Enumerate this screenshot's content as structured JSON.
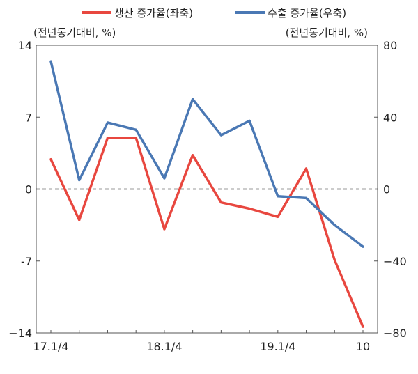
{
  "chart_data": {
    "type": "line",
    "legend": {
      "placement": "top",
      "entries": [
        "생산 증가율(좌축)",
        "수출 증가율(우축)"
      ]
    },
    "left_axis": {
      "unit_label": "(전년동기대비, %)",
      "ylim": [
        -14,
        14
      ],
      "ticks": [
        14,
        7,
        0,
        -7,
        -14
      ],
      "tick_labels": [
        "14",
        "7",
        "0",
        "-7",
        "−14"
      ]
    },
    "right_axis": {
      "unit_label": "(전년동기대비, %)",
      "ylim": [
        -80,
        80
      ],
      "ticks": [
        80,
        40,
        0,
        -40,
        -80
      ],
      "tick_labels": [
        "80",
        "40",
        "0",
        "−40",
        "−80"
      ]
    },
    "x_tick_labels": [
      {
        "index": 0,
        "label": "17.1/4"
      },
      {
        "index": 4,
        "label": "18.1/4"
      },
      {
        "index": 8,
        "label": "19.1/4"
      },
      {
        "index": 11,
        "label": "10"
      }
    ],
    "x_count": 12,
    "zero_line": "dashed",
    "grid": false,
    "series": [
      {
        "name": "생산 증가율(좌축)",
        "axis": "left",
        "color": "#e8473f",
        "values": [
          2.9,
          -3.0,
          5.0,
          5.0,
          -3.9,
          3.3,
          -1.3,
          -1.9,
          -2.7,
          2.0,
          -6.9,
          -13.4
        ]
      },
      {
        "name": "수출 증가율(우축)",
        "axis": "right",
        "color": "#4a78b4",
        "values": [
          71,
          5,
          37,
          33,
          6,
          50,
          30,
          38,
          -4,
          -5,
          -20,
          -32
        ]
      }
    ]
  }
}
